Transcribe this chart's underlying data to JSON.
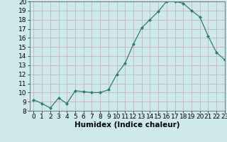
{
  "x": [
    0,
    1,
    2,
    3,
    4,
    5,
    6,
    7,
    8,
    9,
    10,
    11,
    12,
    13,
    14,
    15,
    16,
    17,
    18,
    19,
    20,
    21,
    22,
    23
  ],
  "y": [
    9.2,
    8.8,
    8.3,
    9.4,
    8.8,
    10.2,
    10.1,
    10.0,
    10.0,
    10.3,
    12.0,
    13.2,
    15.3,
    17.1,
    18.0,
    18.9,
    20.0,
    20.0,
    19.8,
    19.0,
    18.3,
    16.2,
    14.4,
    13.6
  ],
  "xlabel": "Humidex (Indice chaleur)",
  "ylim": [
    8,
    20
  ],
  "xlim": [
    -0.5,
    23
  ],
  "yticks": [
    8,
    9,
    10,
    11,
    12,
    13,
    14,
    15,
    16,
    17,
    18,
    19,
    20
  ],
  "xticks": [
    0,
    1,
    2,
    3,
    4,
    5,
    6,
    7,
    8,
    9,
    10,
    11,
    12,
    13,
    14,
    15,
    16,
    17,
    18,
    19,
    20,
    21,
    22,
    23
  ],
  "line_color": "#2d7d6e",
  "marker_color": "#2d7d6e",
  "bg_color": "#ceeae8",
  "grid_color": "#b8d8d5",
  "xlabel_fontsize": 7.5,
  "tick_fontsize": 6.5
}
